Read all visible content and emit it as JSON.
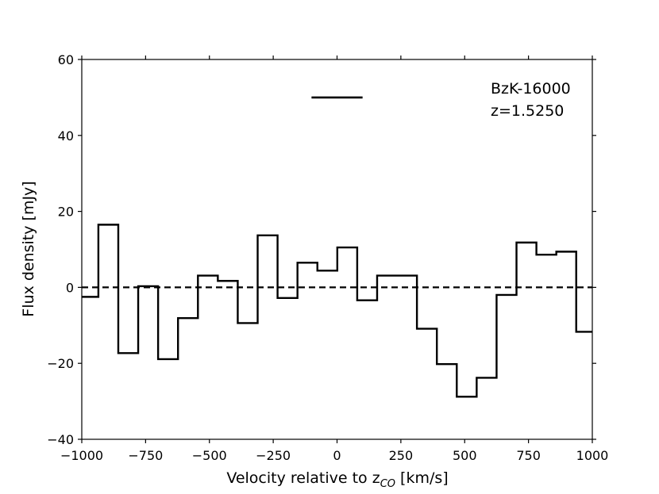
{
  "chart_data": {
    "type": "line",
    "style": "step",
    "title": "",
    "xlabel": "Velocity relative to z",
    "xlabel_sub": "CO",
    "xlabel_unit": " [km/s]",
    "ylabel": "Flux density [mJy]",
    "xlim": [
      -1000,
      1000
    ],
    "ylim": [
      -40,
      60
    ],
    "xticks": [
      -1000,
      -750,
      -500,
      -250,
      0,
      250,
      500,
      750,
      1000
    ],
    "xtick_labels": [
      "−1000",
      "−750",
      "−500",
      "−250",
      "0",
      "250",
      "500",
      "750",
      "1000"
    ],
    "yticks": [
      -40,
      -20,
      0,
      20,
      40,
      60
    ],
    "ytick_labels": [
      "−40",
      "−20",
      "0",
      "20",
      "40",
      "60"
    ],
    "grid": false,
    "bin_edges": [
      -1000,
      -935,
      -857,
      -779,
      -701,
      -623,
      -545,
      -467,
      -389,
      -311,
      -233,
      -155,
      -77,
      1,
      79,
      157,
      235,
      313,
      391,
      469,
      547,
      625,
      703,
      781,
      859,
      937,
      1000
    ],
    "values": [
      -2.5,
      16.5,
      -17.3,
      0.3,
      -18.9,
      -8.1,
      3.1,
      1.7,
      -9.4,
      13.7,
      -2.8,
      6.5,
      4.4,
      10.5,
      -3.4,
      3.1,
      3.1,
      -10.9,
      -20.2,
      -28.8,
      -23.8,
      -2.0,
      11.8,
      8.6,
      9.4,
      -11.7
    ],
    "zero_line": {
      "y": 0,
      "style": "dashed"
    },
    "linewidth_marker": {
      "x": [
        -100,
        100
      ],
      "y": 50
    },
    "annotations": [
      "BzK-16000",
      "z=1.5250"
    ],
    "colors": {
      "line": "#000000",
      "background": "#ffffff"
    }
  }
}
